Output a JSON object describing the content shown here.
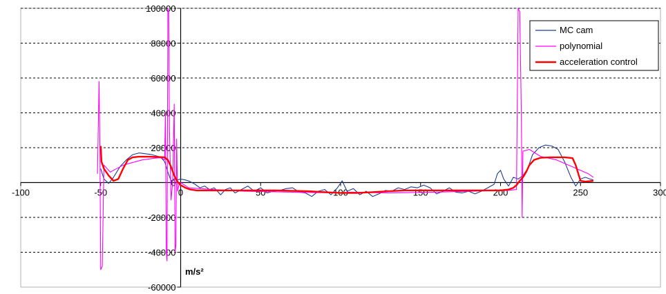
{
  "chart_data": {
    "type": "line",
    "title": "",
    "xlabel": "",
    "ylabel": "m/s²",
    "xlim": [
      -100,
      300
    ],
    "ylim": [
      -60000,
      100000
    ],
    "x_ticks": [
      -100,
      -50,
      0,
      50,
      100,
      150,
      200,
      250,
      300
    ],
    "y_ticks": [
      -60000,
      -40000,
      -20000,
      0,
      20000,
      40000,
      60000,
      80000,
      100000
    ],
    "x_tick_labels": [
      "-100",
      "-50",
      "0",
      "50",
      "100",
      "150",
      "200",
      "250",
      "300"
    ],
    "y_tick_labels": [
      "-60000",
      "-40000",
      "-20000",
      "0",
      "20000",
      "40000",
      "60000",
      "80000",
      "100000"
    ],
    "grid": "horizontal dashed",
    "legend_position": "top-right",
    "series": [
      {
        "name": "MC cam",
        "color": "#1f3a93",
        "points": [
          [
            -50,
            8000
          ],
          [
            -48,
            2000
          ],
          [
            -45,
            -500
          ],
          [
            -42,
            3000
          ],
          [
            -38,
            9000
          ],
          [
            -34,
            13000
          ],
          [
            -30,
            16000
          ],
          [
            -26,
            17000
          ],
          [
            -22,
            16500
          ],
          [
            -18,
            16000
          ],
          [
            -14,
            15000
          ],
          [
            -12,
            14000
          ],
          [
            -10,
            12000
          ],
          [
            -8,
            6000
          ],
          [
            -6,
            1000
          ],
          [
            -4,
            2000
          ],
          [
            -2,
            1500
          ],
          [
            0,
            2000
          ],
          [
            3,
            1500
          ],
          [
            6,
            500
          ],
          [
            9,
            -1000
          ],
          [
            12,
            -3000
          ],
          [
            15,
            -2000
          ],
          [
            18,
            -4000
          ],
          [
            21,
            -3000
          ],
          [
            25,
            -7000
          ],
          [
            28,
            -4000
          ],
          [
            31,
            -3000
          ],
          [
            34,
            -6000
          ],
          [
            38,
            -4000
          ],
          [
            42,
            -2000
          ],
          [
            46,
            -5000
          ],
          [
            50,
            -3000
          ],
          [
            54,
            -6000
          ],
          [
            58,
            -5000
          ],
          [
            62,
            -4500
          ],
          [
            66,
            -3500
          ],
          [
            70,
            -3000
          ],
          [
            74,
            -5500
          ],
          [
            78,
            -6000
          ],
          [
            82,
            -8000
          ],
          [
            86,
            -5000
          ],
          [
            90,
            -4000
          ],
          [
            94,
            -7000
          ],
          [
            98,
            -3000
          ],
          [
            101,
            1000
          ],
          [
            104,
            -5000
          ],
          [
            108,
            -3500
          ],
          [
            112,
            -7000
          ],
          [
            116,
            -5000
          ],
          [
            120,
            -8000
          ],
          [
            124,
            -6500
          ],
          [
            128,
            -4500
          ],
          [
            132,
            -5000
          ],
          [
            136,
            -3000
          ],
          [
            140,
            -4000
          ],
          [
            144,
            -2500
          ],
          [
            148,
            -3000
          ],
          [
            152,
            -1500
          ],
          [
            156,
            -3000
          ],
          [
            160,
            -6500
          ],
          [
            164,
            -5000
          ],
          [
            168,
            -3000
          ],
          [
            172,
            -5500
          ],
          [
            176,
            -6000
          ],
          [
            180,
            -5000
          ],
          [
            184,
            -6500
          ],
          [
            188,
            -5000
          ],
          [
            192,
            -3000
          ],
          [
            196,
            -1000
          ],
          [
            198,
            5000
          ],
          [
            200,
            7000
          ],
          [
            202,
            2000
          ],
          [
            205,
            -2000
          ],
          [
            208,
            3000
          ],
          [
            211,
            2000
          ],
          [
            214,
            4000
          ],
          [
            217,
            8000
          ],
          [
            220,
            16000
          ],
          [
            224,
            20000
          ],
          [
            228,
            21500
          ],
          [
            232,
            21000
          ],
          [
            236,
            19000
          ],
          [
            240,
            12000
          ],
          [
            244,
            3000
          ],
          [
            247,
            -2000
          ],
          [
            250,
            2000
          ],
          [
            253,
            3000
          ],
          [
            256,
            2000
          ],
          [
            258,
            1500
          ]
        ]
      },
      {
        "name": "polynomial",
        "color": "#ff00ff",
        "points": [
          [
            -52,
            5000
          ],
          [
            -51,
            58000
          ],
          [
            -50.5,
            20000
          ],
          [
            -50,
            -50000
          ],
          [
            -49,
            -48000
          ],
          [
            -48,
            10000
          ],
          [
            -44,
            6000
          ],
          [
            -40,
            8000
          ],
          [
            -36,
            10000
          ],
          [
            -32,
            11000
          ],
          [
            -28,
            12000
          ],
          [
            -24,
            13000
          ],
          [
            -20,
            13500
          ],
          [
            -16,
            14000
          ],
          [
            -12,
            14200
          ],
          [
            -10,
            13000
          ],
          [
            -9.5,
            40000
          ],
          [
            -9,
            -40000
          ],
          [
            -8.5,
            -45000
          ],
          [
            -8,
            100000
          ],
          [
            -7.5,
            98000
          ],
          [
            -7,
            30000
          ],
          [
            -6,
            -10000
          ],
          [
            -5,
            0
          ],
          [
            -4,
            45000
          ],
          [
            -3.5,
            -40000
          ],
          [
            -3,
            -36000
          ],
          [
            -2.5,
            25000
          ],
          [
            -2,
            -5000
          ],
          [
            -1,
            -1000
          ],
          [
            0,
            0
          ],
          [
            5,
            -3000
          ],
          [
            20,
            -4000
          ],
          [
            40,
            -5000
          ],
          [
            70,
            -5500
          ],
          [
            100,
            -6000
          ],
          [
            105,
            -5500
          ],
          [
            130,
            -6000
          ],
          [
            160,
            -5500
          ],
          [
            190,
            -4800
          ],
          [
            205,
            -4500
          ],
          [
            210,
            -4000
          ],
          [
            211,
            100000
          ],
          [
            212,
            98000
          ],
          [
            213,
            40000
          ],
          [
            213.5,
            -20000
          ],
          [
            214,
            18000
          ],
          [
            218,
            19000
          ],
          [
            225,
            15000
          ],
          [
            235,
            13000
          ],
          [
            245,
            9000
          ],
          [
            255,
            5000
          ],
          [
            258,
            3000
          ]
        ]
      },
      {
        "name": "acceleration control",
        "color": "#ff0000",
        "points": [
          [
            -50,
            21000
          ],
          [
            -49.5,
            12000
          ],
          [
            -48,
            8000
          ],
          [
            -45,
            4000
          ],
          [
            -42,
            1000
          ],
          [
            -39,
            2000
          ],
          [
            -36,
            8000
          ],
          [
            -33,
            13000
          ],
          [
            -30,
            14500
          ],
          [
            -26,
            14800
          ],
          [
            -20,
            14800
          ],
          [
            -14,
            14700
          ],
          [
            -10,
            14500
          ],
          [
            -8,
            13000
          ],
          [
            -6,
            9000
          ],
          [
            -4,
            4000
          ],
          [
            -2,
            500
          ],
          [
            0,
            -1500
          ],
          [
            3,
            -3000
          ],
          [
            6,
            -4000
          ],
          [
            10,
            -4500
          ],
          [
            20,
            -4500
          ],
          [
            40,
            -4500
          ],
          [
            60,
            -4500
          ],
          [
            80,
            -5000
          ],
          [
            90,
            -5500
          ],
          [
            100,
            -6000
          ],
          [
            110,
            -6000
          ],
          [
            120,
            -5500
          ],
          [
            130,
            -5000
          ],
          [
            140,
            -4500
          ],
          [
            160,
            -4500
          ],
          [
            180,
            -4500
          ],
          [
            200,
            -4500
          ],
          [
            205,
            -4000
          ],
          [
            208,
            -3000
          ],
          [
            210,
            -1500
          ],
          [
            212,
            1000
          ],
          [
            214,
            3000
          ],
          [
            216,
            6000
          ],
          [
            218,
            10000
          ],
          [
            221,
            13000
          ],
          [
            225,
            14200
          ],
          [
            232,
            14500
          ],
          [
            240,
            14500
          ],
          [
            245,
            14000
          ],
          [
            247,
            10000
          ],
          [
            249,
            4000
          ],
          [
            250,
            1000
          ],
          [
            253,
            500
          ],
          [
            258,
            1000
          ]
        ]
      }
    ]
  }
}
